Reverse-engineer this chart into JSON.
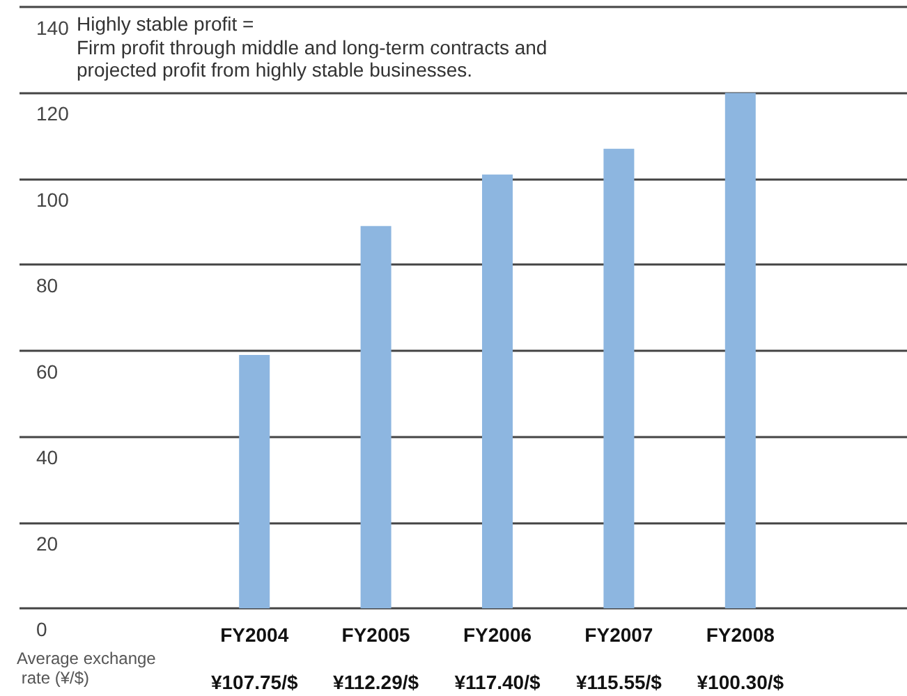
{
  "chart_data": {
    "type": "bar",
    "title": "Highly stable profit =",
    "subtitle": "Firm profit through middle and long-term contracts and projected profit from highly stable businesses.",
    "categories": [
      "FY2004",
      "FY2005",
      "FY2006",
      "FY2007",
      "FY2008"
    ],
    "values": [
      59,
      89,
      101,
      107,
      120
    ],
    "color": "#8db6e0",
    "ylim": [
      0,
      140
    ],
    "yticks": [
      0,
      20,
      40,
      60,
      80,
      100,
      120,
      140
    ],
    "grid": "y",
    "annotations": [
      "Average exchange rate (¥/$)",
      "¥107.75/$",
      "¥112.29/$",
      "¥117.40/$",
      "¥115.55/$",
      "¥100.30/$"
    ]
  }
}
